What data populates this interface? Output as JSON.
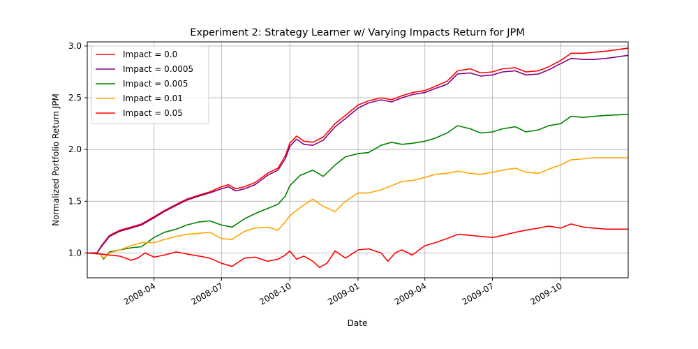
{
  "chart_data": {
    "type": "line",
    "title": "Experiment 2: Strategy Learner w/ Varying Impacts Return for JPM",
    "xlabel": "Date",
    "ylabel": "Normalized Portfolio Return JPM",
    "xlim": [
      "2008-01-02",
      "2009-12-31"
    ],
    "ylim": [
      0.76,
      3.04
    ],
    "yticks": [
      1.0,
      1.5,
      2.0,
      2.5,
      3.0
    ],
    "ytick_labels": [
      "1.0",
      "1.5",
      "2.0",
      "2.5",
      "3.0"
    ],
    "xticks": [
      "2008-04-01",
      "2008-07-01",
      "2008-10-01",
      "2009-01-01",
      "2009-04-01",
      "2009-07-01",
      "2009-10-01"
    ],
    "xtick_labels": [
      "2008-04",
      "2008-07",
      "2008-10",
      "2009-01",
      "2009-04",
      "2009-07",
      "2009-10"
    ],
    "grid": true,
    "legend_position": "top-left",
    "series": [
      {
        "name": "Impact = 0.0",
        "color": "#ff0000",
        "points": [
          [
            "2008-01-02",
            1.0
          ],
          [
            "2008-01-15",
            1.0
          ],
          [
            "2008-01-22",
            1.08
          ],
          [
            "2008-02-01",
            1.17
          ],
          [
            "2008-02-15",
            1.22
          ],
          [
            "2008-03-01",
            1.25
          ],
          [
            "2008-03-15",
            1.28
          ],
          [
            "2008-04-01",
            1.35
          ],
          [
            "2008-04-15",
            1.41
          ],
          [
            "2008-05-01",
            1.47
          ],
          [
            "2008-05-15",
            1.52
          ],
          [
            "2008-06-01",
            1.56
          ],
          [
            "2008-06-15",
            1.59
          ],
          [
            "2008-07-01",
            1.64
          ],
          [
            "2008-07-10",
            1.66
          ],
          [
            "2008-07-20",
            1.62
          ],
          [
            "2008-08-01",
            1.64
          ],
          [
            "2008-08-15",
            1.68
          ],
          [
            "2008-09-01",
            1.77
          ],
          [
            "2008-09-15",
            1.82
          ],
          [
            "2008-09-25",
            1.94
          ],
          [
            "2008-10-01",
            2.06
          ],
          [
            "2008-10-10",
            2.13
          ],
          [
            "2008-10-20",
            2.08
          ],
          [
            "2008-11-01",
            2.07
          ],
          [
            "2008-11-15",
            2.12
          ],
          [
            "2008-12-01",
            2.25
          ],
          [
            "2008-12-15",
            2.33
          ],
          [
            "2009-01-01",
            2.43
          ],
          [
            "2009-01-15",
            2.47
          ],
          [
            "2009-02-01",
            2.5
          ],
          [
            "2009-02-15",
            2.48
          ],
          [
            "2009-03-01",
            2.52
          ],
          [
            "2009-03-15",
            2.55
          ],
          [
            "2009-04-01",
            2.57
          ],
          [
            "2009-04-15",
            2.61
          ],
          [
            "2009-05-01",
            2.66
          ],
          [
            "2009-05-15",
            2.76
          ],
          [
            "2009-06-01",
            2.78
          ],
          [
            "2009-06-15",
            2.74
          ],
          [
            "2009-07-01",
            2.75
          ],
          [
            "2009-07-15",
            2.78
          ],
          [
            "2009-08-01",
            2.79
          ],
          [
            "2009-08-15",
            2.75
          ],
          [
            "2009-09-01",
            2.76
          ],
          [
            "2009-09-15",
            2.8
          ],
          [
            "2009-10-01",
            2.86
          ],
          [
            "2009-10-15",
            2.93
          ],
          [
            "2009-11-01",
            2.93
          ],
          [
            "2009-11-15",
            2.94
          ],
          [
            "2009-12-01",
            2.95
          ],
          [
            "2009-12-31",
            2.98
          ]
        ]
      },
      {
        "name": "Impact = 0.0005",
        "color": "#800080",
        "points": [
          [
            "2008-01-02",
            1.0
          ],
          [
            "2008-01-15",
            1.0
          ],
          [
            "2008-01-22",
            1.07
          ],
          [
            "2008-02-01",
            1.16
          ],
          [
            "2008-02-15",
            1.21
          ],
          [
            "2008-03-01",
            1.24
          ],
          [
            "2008-03-15",
            1.27
          ],
          [
            "2008-04-01",
            1.34
          ],
          [
            "2008-04-15",
            1.4
          ],
          [
            "2008-05-01",
            1.46
          ],
          [
            "2008-05-15",
            1.51
          ],
          [
            "2008-06-01",
            1.55
          ],
          [
            "2008-06-15",
            1.58
          ],
          [
            "2008-07-01",
            1.62
          ],
          [
            "2008-07-10",
            1.64
          ],
          [
            "2008-07-20",
            1.6
          ],
          [
            "2008-08-01",
            1.62
          ],
          [
            "2008-08-15",
            1.66
          ],
          [
            "2008-09-01",
            1.75
          ],
          [
            "2008-09-15",
            1.8
          ],
          [
            "2008-09-25",
            1.91
          ],
          [
            "2008-10-01",
            2.03
          ],
          [
            "2008-10-10",
            2.1
          ],
          [
            "2008-10-20",
            2.05
          ],
          [
            "2008-11-01",
            2.04
          ],
          [
            "2008-11-15",
            2.09
          ],
          [
            "2008-12-01",
            2.22
          ],
          [
            "2008-12-15",
            2.3
          ],
          [
            "2009-01-01",
            2.4
          ],
          [
            "2009-01-15",
            2.45
          ],
          [
            "2009-02-01",
            2.48
          ],
          [
            "2009-02-15",
            2.46
          ],
          [
            "2009-03-01",
            2.5
          ],
          [
            "2009-03-15",
            2.53
          ],
          [
            "2009-04-01",
            2.55
          ],
          [
            "2009-04-15",
            2.59
          ],
          [
            "2009-05-01",
            2.63
          ],
          [
            "2009-05-15",
            2.73
          ],
          [
            "2009-06-01",
            2.74
          ],
          [
            "2009-06-15",
            2.71
          ],
          [
            "2009-07-01",
            2.72
          ],
          [
            "2009-07-15",
            2.75
          ],
          [
            "2009-08-01",
            2.76
          ],
          [
            "2009-08-15",
            2.72
          ],
          [
            "2009-09-01",
            2.73
          ],
          [
            "2009-09-15",
            2.77
          ],
          [
            "2009-10-01",
            2.83
          ],
          [
            "2009-10-15",
            2.88
          ],
          [
            "2009-11-01",
            2.87
          ],
          [
            "2009-11-15",
            2.87
          ],
          [
            "2009-12-01",
            2.88
          ],
          [
            "2009-12-31",
            2.91
          ]
        ]
      },
      {
        "name": "Impact = 0.005",
        "color": "#008000",
        "points": [
          [
            "2008-01-02",
            1.0
          ],
          [
            "2008-01-20",
            0.99
          ],
          [
            "2008-01-24",
            0.94
          ],
          [
            "2008-02-01",
            1.01
          ],
          [
            "2008-02-15",
            1.03
          ],
          [
            "2008-03-01",
            1.05
          ],
          [
            "2008-03-15",
            1.06
          ],
          [
            "2008-04-01",
            1.15
          ],
          [
            "2008-04-15",
            1.2
          ],
          [
            "2008-05-01",
            1.23
          ],
          [
            "2008-05-15",
            1.27
          ],
          [
            "2008-06-01",
            1.3
          ],
          [
            "2008-06-15",
            1.31
          ],
          [
            "2008-07-01",
            1.27
          ],
          [
            "2008-07-15",
            1.25
          ],
          [
            "2008-08-01",
            1.33
          ],
          [
            "2008-08-15",
            1.38
          ],
          [
            "2008-09-01",
            1.43
          ],
          [
            "2008-09-15",
            1.47
          ],
          [
            "2008-09-25",
            1.55
          ],
          [
            "2008-10-01",
            1.65
          ],
          [
            "2008-10-15",
            1.75
          ],
          [
            "2008-11-01",
            1.8
          ],
          [
            "2008-11-15",
            1.74
          ],
          [
            "2008-12-01",
            1.85
          ],
          [
            "2008-12-15",
            1.93
          ],
          [
            "2009-01-01",
            1.96
          ],
          [
            "2009-01-15",
            1.97
          ],
          [
            "2009-02-01",
            2.04
          ],
          [
            "2009-02-15",
            2.07
          ],
          [
            "2009-03-01",
            2.05
          ],
          [
            "2009-03-15",
            2.06
          ],
          [
            "2009-04-01",
            2.08
          ],
          [
            "2009-04-15",
            2.11
          ],
          [
            "2009-05-01",
            2.16
          ],
          [
            "2009-05-15",
            2.23
          ],
          [
            "2009-06-01",
            2.2
          ],
          [
            "2009-06-15",
            2.16
          ],
          [
            "2009-07-01",
            2.17
          ],
          [
            "2009-07-15",
            2.2
          ],
          [
            "2009-08-01",
            2.22
          ],
          [
            "2009-08-15",
            2.17
          ],
          [
            "2009-09-01",
            2.19
          ],
          [
            "2009-09-15",
            2.23
          ],
          [
            "2009-10-01",
            2.25
          ],
          [
            "2009-10-15",
            2.32
          ],
          [
            "2009-11-01",
            2.31
          ],
          [
            "2009-11-15",
            2.32
          ],
          [
            "2009-12-01",
            2.33
          ],
          [
            "2009-12-31",
            2.34
          ]
        ]
      },
      {
        "name": "Impact = 0.01",
        "color": "#ffa500",
        "points": [
          [
            "2008-01-02",
            1.0
          ],
          [
            "2008-01-20",
            0.99
          ],
          [
            "2008-01-24",
            0.95
          ],
          [
            "2008-02-01",
            1.0
          ],
          [
            "2008-02-15",
            1.03
          ],
          [
            "2008-03-01",
            1.07
          ],
          [
            "2008-03-15",
            1.1
          ],
          [
            "2008-04-01",
            1.1
          ],
          [
            "2008-04-15",
            1.13
          ],
          [
            "2008-05-01",
            1.16
          ],
          [
            "2008-05-15",
            1.18
          ],
          [
            "2008-06-01",
            1.19
          ],
          [
            "2008-06-15",
            1.2
          ],
          [
            "2008-07-01",
            1.14
          ],
          [
            "2008-07-15",
            1.13
          ],
          [
            "2008-08-01",
            1.21
          ],
          [
            "2008-08-15",
            1.24
          ],
          [
            "2008-09-01",
            1.25
          ],
          [
            "2008-09-15",
            1.22
          ],
          [
            "2008-09-25",
            1.3
          ],
          [
            "2008-10-01",
            1.36
          ],
          [
            "2008-10-15",
            1.44
          ],
          [
            "2008-11-01",
            1.52
          ],
          [
            "2008-11-15",
            1.45
          ],
          [
            "2008-12-01",
            1.4
          ],
          [
            "2008-12-15",
            1.5
          ],
          [
            "2009-01-01",
            1.58
          ],
          [
            "2009-01-15",
            1.58
          ],
          [
            "2009-02-01",
            1.61
          ],
          [
            "2009-02-15",
            1.65
          ],
          [
            "2009-03-01",
            1.69
          ],
          [
            "2009-03-15",
            1.7
          ],
          [
            "2009-04-01",
            1.73
          ],
          [
            "2009-04-15",
            1.76
          ],
          [
            "2009-05-01",
            1.77
          ],
          [
            "2009-05-15",
            1.79
          ],
          [
            "2009-06-01",
            1.77
          ],
          [
            "2009-06-15",
            1.76
          ],
          [
            "2009-07-01",
            1.78
          ],
          [
            "2009-07-15",
            1.8
          ],
          [
            "2009-08-01",
            1.82
          ],
          [
            "2009-08-15",
            1.78
          ],
          [
            "2009-09-01",
            1.77
          ],
          [
            "2009-09-15",
            1.81
          ],
          [
            "2009-10-01",
            1.85
          ],
          [
            "2009-10-15",
            1.9
          ],
          [
            "2009-11-01",
            1.91
          ],
          [
            "2009-11-15",
            1.92
          ],
          [
            "2009-12-01",
            1.92
          ],
          [
            "2009-12-31",
            1.92
          ]
        ]
      },
      {
        "name": "Impact = 0.05",
        "color": "#ff0000",
        "points": [
          [
            "2008-01-02",
            1.0
          ],
          [
            "2008-01-20",
            0.99
          ],
          [
            "2008-02-01",
            0.98
          ],
          [
            "2008-02-15",
            0.97
          ],
          [
            "2008-03-01",
            0.93
          ],
          [
            "2008-03-10",
            0.95
          ],
          [
            "2008-03-20",
            1.0
          ],
          [
            "2008-04-01",
            0.96
          ],
          [
            "2008-04-15",
            0.98
          ],
          [
            "2008-05-01",
            1.01
          ],
          [
            "2008-05-15",
            0.99
          ],
          [
            "2008-06-01",
            0.97
          ],
          [
            "2008-06-15",
            0.95
          ],
          [
            "2008-07-01",
            0.9
          ],
          [
            "2008-07-15",
            0.87
          ],
          [
            "2008-08-01",
            0.95
          ],
          [
            "2008-08-15",
            0.96
          ],
          [
            "2008-09-01",
            0.92
          ],
          [
            "2008-09-15",
            0.94
          ],
          [
            "2008-09-25",
            0.98
          ],
          [
            "2008-10-01",
            1.02
          ],
          [
            "2008-10-10",
            0.94
          ],
          [
            "2008-10-20",
            0.97
          ],
          [
            "2008-11-01",
            0.92
          ],
          [
            "2008-11-10",
            0.86
          ],
          [
            "2008-11-20",
            0.9
          ],
          [
            "2008-12-01",
            1.02
          ],
          [
            "2008-12-15",
            0.95
          ],
          [
            "2009-01-01",
            1.03
          ],
          [
            "2009-01-15",
            1.04
          ],
          [
            "2009-02-01",
            1.0
          ],
          [
            "2009-02-10",
            0.92
          ],
          [
            "2009-02-20",
            1.0
          ],
          [
            "2009-03-01",
            1.03
          ],
          [
            "2009-03-15",
            0.98
          ],
          [
            "2009-04-01",
            1.07
          ],
          [
            "2009-04-15",
            1.1
          ],
          [
            "2009-05-01",
            1.14
          ],
          [
            "2009-05-15",
            1.18
          ],
          [
            "2009-06-01",
            1.17
          ],
          [
            "2009-06-15",
            1.16
          ],
          [
            "2009-07-01",
            1.15
          ],
          [
            "2009-07-15",
            1.17
          ],
          [
            "2009-08-01",
            1.2
          ],
          [
            "2009-08-15",
            1.22
          ],
          [
            "2009-09-01",
            1.24
          ],
          [
            "2009-09-15",
            1.26
          ],
          [
            "2009-10-01",
            1.24
          ],
          [
            "2009-10-15",
            1.28
          ],
          [
            "2009-11-01",
            1.25
          ],
          [
            "2009-11-15",
            1.24
          ],
          [
            "2009-12-01",
            1.23
          ],
          [
            "2009-12-31",
            1.23
          ]
        ]
      }
    ]
  }
}
